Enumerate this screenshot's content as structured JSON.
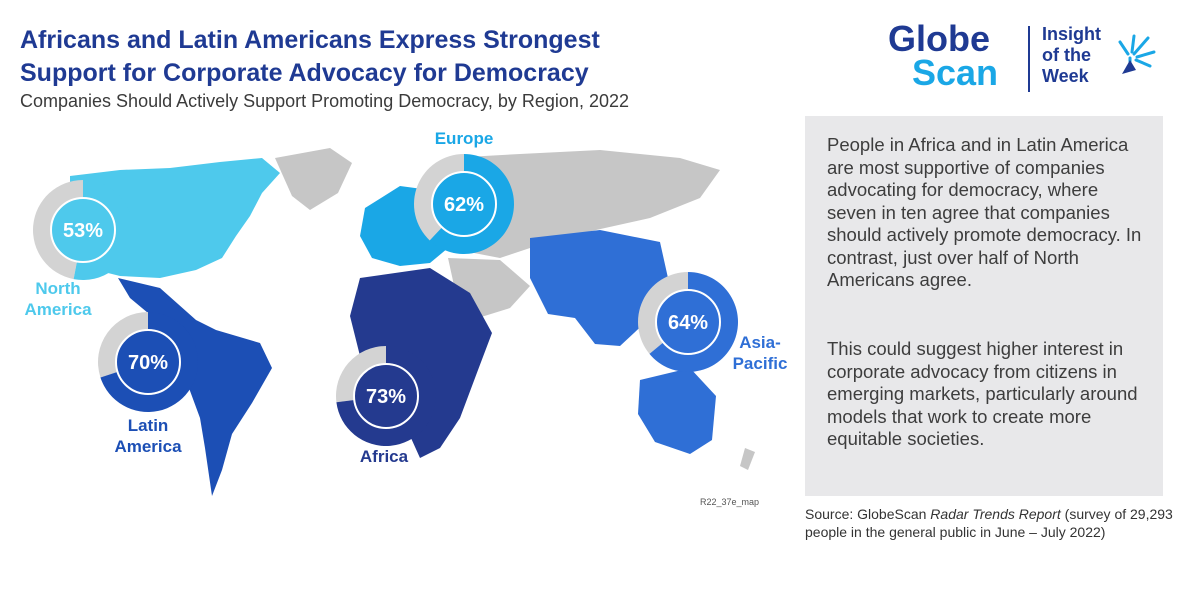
{
  "header": {
    "title_line1": "Africans and Latin Americans Express Strongest",
    "title_line2": "Support for Corporate Advocacy for Democracy",
    "subtitle": "Companies Should Actively Support Promoting Democracy, by Region, 2022"
  },
  "logo": {
    "globe": "Globe",
    "scan": "Scan",
    "insight_line1": "Insight",
    "insight_line2": "of the",
    "insight_line3": "Week"
  },
  "panel": {
    "paragraph1": "People in Africa and in Latin America are most supportive of companies advocating for democracy, where seven in ten agree that companies should actively promote democracy. In contrast, just over half of North Americans agree.",
    "paragraph2": "This could suggest higher interest in corporate advocacy from citizens in emerging markets, particularly around models that work to create more equitable societies."
  },
  "source": {
    "prefix": "Source: GlobeScan ",
    "report": "Radar Trends Report",
    "suffix": " (survey of 29,293 people in the general public in June – July 2022)"
  },
  "map_ref": "R22_37e_map",
  "colors": {
    "north_america": "#4ec9ec",
    "europe": "#1aa7e6",
    "asia_pacific": "#2f6fd6",
    "latin_america": "#1c4fb5",
    "africa": "#243a8f",
    "remainder": "#d3d3d3",
    "land": "#c6c6c6"
  },
  "chart_data": {
    "type": "pie",
    "title": "Companies Should Actively Support Promoting Democracy, by Region, 2022",
    "unit": "%",
    "slices": [
      {
        "label_line1": "North",
        "label_line2": "America",
        "value": 53,
        "display": "53%",
        "color": "#4ec9ec"
      },
      {
        "label_line1": "Europe",
        "label_line2": "",
        "value": 62,
        "display": "62%",
        "color": "#1aa7e6"
      },
      {
        "label_line1": "Latin",
        "label_line2": "America",
        "value": 70,
        "display": "70%",
        "color": "#1c4fb5"
      },
      {
        "label_line1": "Africa",
        "label_line2": "",
        "value": 73,
        "display": "73%",
        "color": "#243a8f"
      },
      {
        "label_line1": "Asia-",
        "label_line2": "Pacific",
        "value": 64,
        "display": "64%",
        "color": "#2f6fd6"
      }
    ]
  }
}
